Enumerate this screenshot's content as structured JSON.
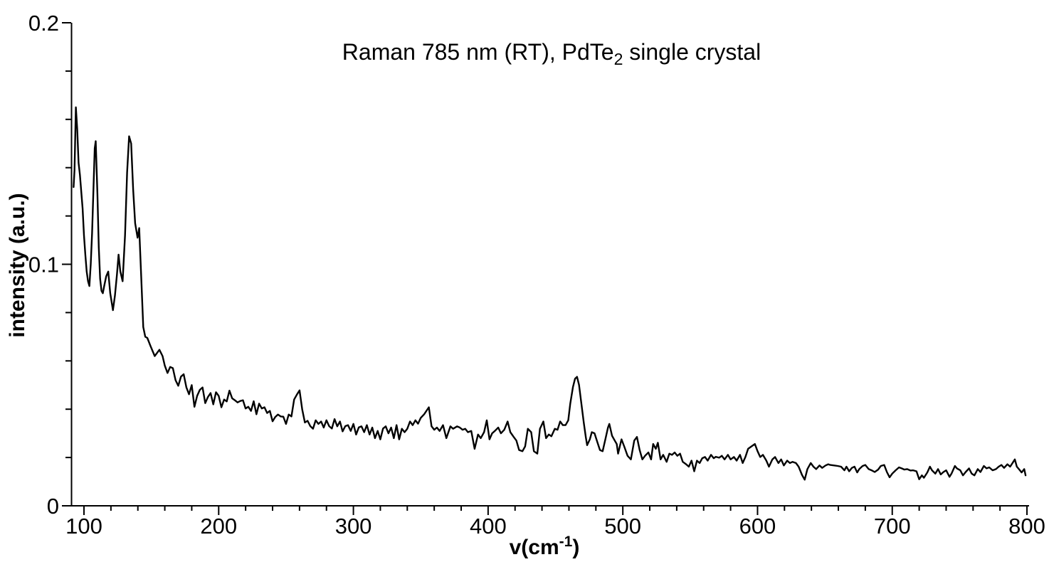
{
  "chart_data": {
    "type": "line",
    "title": "Raman 785 nm (RT), PdTe2 single crystal",
    "title_parts": [
      "Raman 785 nm (RT), PdTe",
      "2",
      " single crystal"
    ],
    "xlabel": "v(cm-1)",
    "xlabel_parts": [
      "v(cm",
      "-1",
      ")"
    ],
    "ylabel": "intensity (a.u.)",
    "xlim": [
      90.5,
      800
    ],
    "ylim": [
      0,
      0.2
    ],
    "grid": false,
    "legend": "none",
    "line_color": "#000000",
    "background_color": "#ffffff",
    "x_ticks_major": [
      100,
      200,
      300,
      400,
      500,
      600,
      700,
      800
    ],
    "x_tick_labels": [
      "100",
      "200",
      "300",
      "400",
      "500",
      "600",
      "700",
      "800"
    ],
    "x_ticks_minor": [
      120,
      140,
      160,
      180,
      220,
      240,
      260,
      280,
      320,
      340,
      360,
      380,
      420,
      440,
      460,
      480,
      520,
      540,
      560,
      580,
      620,
      640,
      660,
      680,
      720,
      740,
      760,
      780
    ],
    "y_ticks_major": [
      0,
      0.1,
      0.2
    ],
    "y_tick_labels": [
      "0",
      "0.1",
      "0.2"
    ],
    "y_ticks_minor": [
      0.02,
      0.04,
      0.06,
      0.08,
      0.12,
      0.14,
      0.16,
      0.18
    ],
    "series_name": "PdTe2 single crystal Raman spectrum",
    "points": [
      [
        92.3,
        0.132
      ],
      [
        93,
        0.139
      ],
      [
        94,
        0.165
      ],
      [
        95,
        0.156
      ],
      [
        96,
        0.142
      ],
      [
        97,
        0.137
      ],
      [
        98,
        0.13
      ],
      [
        99,
        0.123
      ],
      [
        100,
        0.112
      ],
      [
        101,
        0.104
      ],
      [
        102,
        0.097
      ],
      [
        103,
        0.093
      ],
      [
        104,
        0.091
      ],
      [
        105,
        0.1
      ],
      [
        106,
        0.113
      ],
      [
        107,
        0.131
      ],
      [
        108,
        0.148
      ],
      [
        108.7,
        0.151
      ],
      [
        110,
        0.129
      ],
      [
        111,
        0.107
      ],
      [
        112,
        0.094
      ],
      [
        113,
        0.089
      ],
      [
        114,
        0.088
      ],
      [
        115,
        0.091
      ],
      [
        116.5,
        0.095
      ],
      [
        118,
        0.097
      ],
      [
        119.5,
        0.088
      ],
      [
        121.5,
        0.081
      ],
      [
        123,
        0.087
      ],
      [
        124.5,
        0.096
      ],
      [
        125.7,
        0.104
      ],
      [
        127,
        0.097
      ],
      [
        128.7,
        0.093
      ],
      [
        130.5,
        0.112
      ],
      [
        132,
        0.138
      ],
      [
        133.5,
        0.153
      ],
      [
        135,
        0.15
      ],
      [
        136.5,
        0.131
      ],
      [
        138,
        0.117
      ],
      [
        139.8,
        0.111
      ],
      [
        141,
        0.115
      ],
      [
        142.5,
        0.095
      ],
      [
        144,
        0.074
      ],
      [
        145.5,
        0.07
      ],
      [
        147,
        0.0695
      ],
      [
        149.5,
        0.066
      ],
      [
        152.5,
        0.062
      ],
      [
        156,
        0.0646
      ],
      [
        158.3,
        0.062
      ],
      [
        160,
        0.058
      ],
      [
        162,
        0.055
      ],
      [
        164,
        0.0575
      ],
      [
        166,
        0.057
      ],
      [
        168,
        0.052
      ],
      [
        170,
        0.0497
      ],
      [
        172,
        0.0535
      ],
      [
        174,
        0.0545
      ],
      [
        176,
        0.049
      ],
      [
        178,
        0.0462
      ],
      [
        180,
        0.05
      ],
      [
        182,
        0.041
      ],
      [
        184,
        0.0455
      ],
      [
        186,
        0.048
      ],
      [
        188,
        0.049
      ],
      [
        190,
        0.0425
      ],
      [
        192,
        0.045
      ],
      [
        194,
        0.0467
      ],
      [
        196,
        0.042
      ],
      [
        198,
        0.047
      ],
      [
        200,
        0.0455
      ],
      [
        202,
        0.0408
      ],
      [
        204,
        0.044
      ],
      [
        206,
        0.0432
      ],
      [
        208,
        0.0477
      ],
      [
        210,
        0.0445
      ],
      [
        212,
        0.0437
      ],
      [
        214,
        0.0428
      ],
      [
        216,
        0.0434
      ],
      [
        218,
        0.0437
      ],
      [
        220,
        0.0403
      ],
      [
        222,
        0.041
      ],
      [
        224,
        0.0393
      ],
      [
        226,
        0.0433
      ],
      [
        228,
        0.0379
      ],
      [
        230,
        0.0423
      ],
      [
        232,
        0.0403
      ],
      [
        234,
        0.0408
      ],
      [
        236,
        0.0384
      ],
      [
        238,
        0.0393
      ],
      [
        240,
        0.035
      ],
      [
        242,
        0.0368
      ],
      [
        244,
        0.0378
      ],
      [
        246,
        0.037
      ],
      [
        248,
        0.0369
      ],
      [
        250,
        0.0339
      ],
      [
        252,
        0.0378
      ],
      [
        254,
        0.037
      ],
      [
        256,
        0.044
      ],
      [
        258,
        0.046
      ],
      [
        260,
        0.0478
      ],
      [
        262,
        0.04
      ],
      [
        264,
        0.0345
      ],
      [
        266,
        0.0352
      ],
      [
        268,
        0.033
      ],
      [
        270,
        0.0319
      ],
      [
        272,
        0.0354
      ],
      [
        274,
        0.0339
      ],
      [
        276,
        0.0349
      ],
      [
        278,
        0.0324
      ],
      [
        280,
        0.0354
      ],
      [
        282,
        0.033
      ],
      [
        284,
        0.032
      ],
      [
        286,
        0.0359
      ],
      [
        288,
        0.0329
      ],
      [
        290,
        0.0349
      ],
      [
        292,
        0.0308
      ],
      [
        294,
        0.033
      ],
      [
        296,
        0.0334
      ],
      [
        298,
        0.031
      ],
      [
        300,
        0.0339
      ],
      [
        302,
        0.0295
      ],
      [
        304,
        0.0325
      ],
      [
        306,
        0.0329
      ],
      [
        308,
        0.0305
      ],
      [
        310,
        0.0334
      ],
      [
        312,
        0.0295
      ],
      [
        314,
        0.0324
      ],
      [
        316,
        0.028
      ],
      [
        318,
        0.031
      ],
      [
        320,
        0.0275
      ],
      [
        322,
        0.032
      ],
      [
        324,
        0.0329
      ],
      [
        326,
        0.03
      ],
      [
        328,
        0.0324
      ],
      [
        330,
        0.028
      ],
      [
        332,
        0.0334
      ],
      [
        334,
        0.0275
      ],
      [
        336,
        0.0319
      ],
      [
        338,
        0.0305
      ],
      [
        340,
        0.0319
      ],
      [
        342,
        0.0349
      ],
      [
        344,
        0.0334
      ],
      [
        346,
        0.0354
      ],
      [
        348,
        0.034
      ],
      [
        350,
        0.0364
      ],
      [
        352.5,
        0.0379
      ],
      [
        356,
        0.0408
      ],
      [
        358,
        0.0329
      ],
      [
        360,
        0.0315
      ],
      [
        362,
        0.0324
      ],
      [
        364,
        0.031
      ],
      [
        366.5,
        0.0334
      ],
      [
        369,
        0.028
      ],
      [
        372,
        0.0329
      ],
      [
        374,
        0.0319
      ],
      [
        377,
        0.0329
      ],
      [
        379,
        0.0324
      ],
      [
        381,
        0.0315
      ],
      [
        383,
        0.0319
      ],
      [
        385,
        0.0305
      ],
      [
        387.5,
        0.031
      ],
      [
        390,
        0.0236
      ],
      [
        392.5,
        0.0295
      ],
      [
        394.5,
        0.028
      ],
      [
        397,
        0.0305
      ],
      [
        399,
        0.0354
      ],
      [
        401,
        0.0275
      ],
      [
        403,
        0.03
      ],
      [
        405,
        0.031
      ],
      [
        407.5,
        0.0324
      ],
      [
        409.5,
        0.03
      ],
      [
        412,
        0.0315
      ],
      [
        414.5,
        0.0349
      ],
      [
        416.5,
        0.0305
      ],
      [
        419,
        0.0285
      ],
      [
        421,
        0.027
      ],
      [
        423,
        0.0231
      ],
      [
        425.5,
        0.0226
      ],
      [
        427.5,
        0.0246
      ],
      [
        429.5,
        0.0319
      ],
      [
        432,
        0.0305
      ],
      [
        434,
        0.0226
      ],
      [
        436.5,
        0.0216
      ],
      [
        438.5,
        0.0319
      ],
      [
        441,
        0.0349
      ],
      [
        443,
        0.028
      ],
      [
        445,
        0.0295
      ],
      [
        447,
        0.0288
      ],
      [
        449.5,
        0.0319
      ],
      [
        451.5,
        0.0315
      ],
      [
        453.5,
        0.0349
      ],
      [
        455.5,
        0.0334
      ],
      [
        457.5,
        0.0334
      ],
      [
        459.5,
        0.0354
      ],
      [
        461,
        0.0423
      ],
      [
        463,
        0.0492
      ],
      [
        464.5,
        0.0526
      ],
      [
        466,
        0.0534
      ],
      [
        467.5,
        0.0501
      ],
      [
        469,
        0.0433
      ],
      [
        471,
        0.0344
      ],
      [
        472.5,
        0.0285
      ],
      [
        473.5,
        0.0251
      ],
      [
        475.5,
        0.0275
      ],
      [
        477,
        0.0305
      ],
      [
        479,
        0.03
      ],
      [
        481,
        0.0265
      ],
      [
        483,
        0.0231
      ],
      [
        485,
        0.0226
      ],
      [
        487,
        0.0275
      ],
      [
        489,
        0.0324
      ],
      [
        490,
        0.0339
      ],
      [
        492,
        0.029
      ],
      [
        494,
        0.027
      ],
      [
        495.5,
        0.0256
      ],
      [
        496.5,
        0.0216
      ],
      [
        499,
        0.0275
      ],
      [
        501,
        0.0246
      ],
      [
        503.5,
        0.0207
      ],
      [
        506,
        0.0192
      ],
      [
        508.5,
        0.027
      ],
      [
        510.5,
        0.0285
      ],
      [
        512.5,
        0.0231
      ],
      [
        514.5,
        0.0192
      ],
      [
        516.5,
        0.0207
      ],
      [
        519,
        0.0221
      ],
      [
        521,
        0.0192
      ],
      [
        522.5,
        0.0256
      ],
      [
        524.5,
        0.0236
      ],
      [
        526,
        0.0261
      ],
      [
        528,
        0.0192
      ],
      [
        530,
        0.0211
      ],
      [
        532.5,
        0.0182
      ],
      [
        534.5,
        0.0216
      ],
      [
        536.5,
        0.0211
      ],
      [
        538.5,
        0.0221
      ],
      [
        540.5,
        0.0207
      ],
      [
        542.5,
        0.0216
      ],
      [
        544.5,
        0.0182
      ],
      [
        547,
        0.0172
      ],
      [
        549,
        0.0162
      ],
      [
        551,
        0.0187
      ],
      [
        553,
        0.0143
      ],
      [
        555,
        0.0187
      ],
      [
        557,
        0.0177
      ],
      [
        559,
        0.0197
      ],
      [
        561,
        0.0202
      ],
      [
        563,
        0.0187
      ],
      [
        565.5,
        0.0211
      ],
      [
        567.5,
        0.0197
      ],
      [
        569,
        0.0203
      ],
      [
        571.5,
        0.0199
      ],
      [
        573.5,
        0.0207
      ],
      [
        575.5,
        0.0192
      ],
      [
        578,
        0.0211
      ],
      [
        580,
        0.0192
      ],
      [
        582.5,
        0.0202
      ],
      [
        584.5,
        0.0187
      ],
      [
        587,
        0.0211
      ],
      [
        589,
        0.0177
      ],
      [
        591,
        0.0202
      ],
      [
        593,
        0.0236
      ],
      [
        595.5,
        0.0246
      ],
      [
        598,
        0.0256
      ],
      [
        600,
        0.0226
      ],
      [
        602,
        0.0202
      ],
      [
        604,
        0.0211
      ],
      [
        606.5,
        0.0187
      ],
      [
        608.5,
        0.0162
      ],
      [
        611,
        0.0192
      ],
      [
        613,
        0.0202
      ],
      [
        615.5,
        0.0177
      ],
      [
        617.5,
        0.0192
      ],
      [
        619.5,
        0.0167
      ],
      [
        622,
        0.0187
      ],
      [
        624,
        0.0177
      ],
      [
        626,
        0.0182
      ],
      [
        628.5,
        0.0177
      ],
      [
        630.5,
        0.0162
      ],
      [
        633,
        0.0128
      ],
      [
        635,
        0.0108
      ],
      [
        637,
        0.0152
      ],
      [
        639.5,
        0.0177
      ],
      [
        641.5,
        0.0162
      ],
      [
        643.5,
        0.0152
      ],
      [
        646,
        0.0167
      ],
      [
        648,
        0.0157
      ],
      [
        650.5,
        0.0167
      ],
      [
        652.5,
        0.0172
      ],
      [
        654,
        0.0169
      ],
      [
        657,
        0.0167
      ],
      [
        659.5,
        0.0165
      ],
      [
        662,
        0.0162
      ],
      [
        664.5,
        0.0147
      ],
      [
        666,
        0.0162
      ],
      [
        668,
        0.0143
      ],
      [
        670,
        0.0157
      ],
      [
        672,
        0.0162
      ],
      [
        674,
        0.0138
      ],
      [
        675.5,
        0.0152
      ],
      [
        678,
        0.0165
      ],
      [
        680,
        0.0169
      ],
      [
        682.5,
        0.0152
      ],
      [
        685,
        0.0146
      ],
      [
        687,
        0.014
      ],
      [
        689.5,
        0.015
      ],
      [
        691.5,
        0.0165
      ],
      [
        694,
        0.0169
      ],
      [
        696,
        0.014
      ],
      [
        698,
        0.0118
      ],
      [
        700,
        0.0133
      ],
      [
        702.5,
        0.0147
      ],
      [
        705,
        0.0159
      ],
      [
        707,
        0.0155
      ],
      [
        709,
        0.015
      ],
      [
        711,
        0.0152
      ],
      [
        713.5,
        0.0146
      ],
      [
        715.5,
        0.0147
      ],
      [
        718,
        0.0143
      ],
      [
        720,
        0.011
      ],
      [
        722,
        0.0126
      ],
      [
        723.5,
        0.0116
      ],
      [
        726,
        0.0138
      ],
      [
        728,
        0.0162
      ],
      [
        729.5,
        0.0147
      ],
      [
        732,
        0.0133
      ],
      [
        734,
        0.0152
      ],
      [
        736,
        0.013
      ],
      [
        738,
        0.014
      ],
      [
        740,
        0.0147
      ],
      [
        742.5,
        0.012
      ],
      [
        744,
        0.0133
      ],
      [
        746.5,
        0.0165
      ],
      [
        748,
        0.0155
      ],
      [
        750.5,
        0.0147
      ],
      [
        752.5,
        0.0126
      ],
      [
        754.5,
        0.014
      ],
      [
        757,
        0.0155
      ],
      [
        759,
        0.0133
      ],
      [
        761,
        0.0126
      ],
      [
        763.5,
        0.0152
      ],
      [
        765.5,
        0.014
      ],
      [
        768,
        0.0165
      ],
      [
        770,
        0.0155
      ],
      [
        772,
        0.0159
      ],
      [
        774.5,
        0.0147
      ],
      [
        777,
        0.0152
      ],
      [
        779,
        0.0162
      ],
      [
        781,
        0.0169
      ],
      [
        783,
        0.0157
      ],
      [
        785.5,
        0.0172
      ],
      [
        787.5,
        0.0162
      ],
      [
        789.5,
        0.0179
      ],
      [
        791,
        0.0192
      ],
      [
        792.5,
        0.0162
      ],
      [
        794,
        0.0152
      ],
      [
        796,
        0.0138
      ],
      [
        798,
        0.0152
      ],
      [
        799,
        0.0126
      ]
    ]
  }
}
